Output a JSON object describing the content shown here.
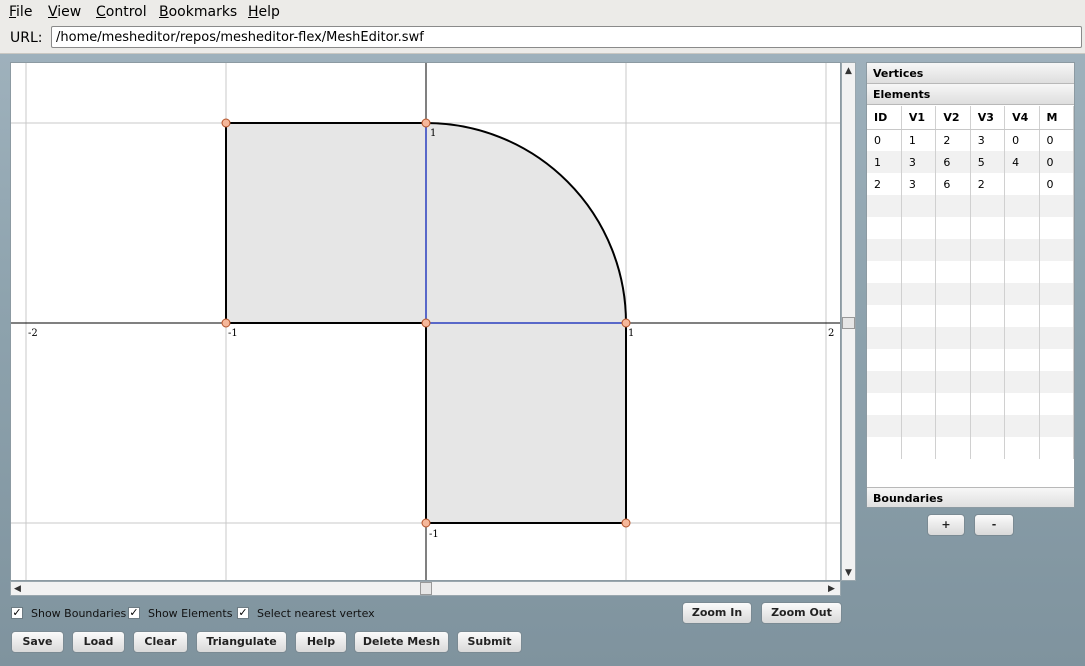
{
  "menu": {
    "file": "File",
    "view": "View",
    "control": "Control",
    "bookmarks": "Bookmarks",
    "help": "Help"
  },
  "url": {
    "label": "URL:",
    "value": "/home/mesheditor/repos/mesheditor-flex/MeshEditor.swf"
  },
  "canvas": {
    "x_range": [
      -2,
      2
    ],
    "y_range": [
      -1.05,
      1.3
    ],
    "x_tick_labels": [
      "-2",
      "-1",
      "1",
      "2"
    ],
    "y_tick_labels": [
      "1",
      "-1"
    ],
    "vertices": [
      {
        "x": -1,
        "y": 1
      },
      {
        "x": 0,
        "y": 1
      },
      {
        "x": -1,
        "y": 0
      },
      {
        "x": 0,
        "y": 0
      },
      {
        "x": 1,
        "y": 0
      },
      {
        "x": 0,
        "y": -1
      },
      {
        "x": 1,
        "y": -1
      }
    ],
    "fill_color": "#e6e6e6",
    "edge_color": "#000000",
    "inner_edge_color": "#2a3fbf",
    "vertex_color": "#f5b79a"
  },
  "panel": {
    "vertices_header": "Vertices",
    "elements_header": "Elements",
    "boundaries_header": "Boundaries",
    "columns": [
      "ID",
      "V1",
      "V2",
      "V3",
      "V4",
      "M"
    ],
    "rows": [
      [
        "0",
        "1",
        "2",
        "3",
        "0",
        "0"
      ],
      [
        "1",
        "3",
        "6",
        "5",
        "4",
        "0"
      ],
      [
        "2",
        "3",
        "6",
        "2",
        "",
        "0"
      ]
    ],
    "add_label": "+",
    "remove_label": "-"
  },
  "options": {
    "show_boundaries": "Show Boundaries",
    "show_elements": "Show Elements",
    "select_nearest": "Select nearest vertex",
    "check_mark": "✓"
  },
  "zoom": {
    "zoom_in": "Zoom In",
    "zoom_out": "Zoom Out"
  },
  "actions": {
    "save": "Save",
    "load": "Load",
    "clear": "Clear",
    "triangulate": "Triangulate",
    "help": "Help",
    "delete_mesh": "Delete Mesh",
    "submit": "Submit"
  }
}
